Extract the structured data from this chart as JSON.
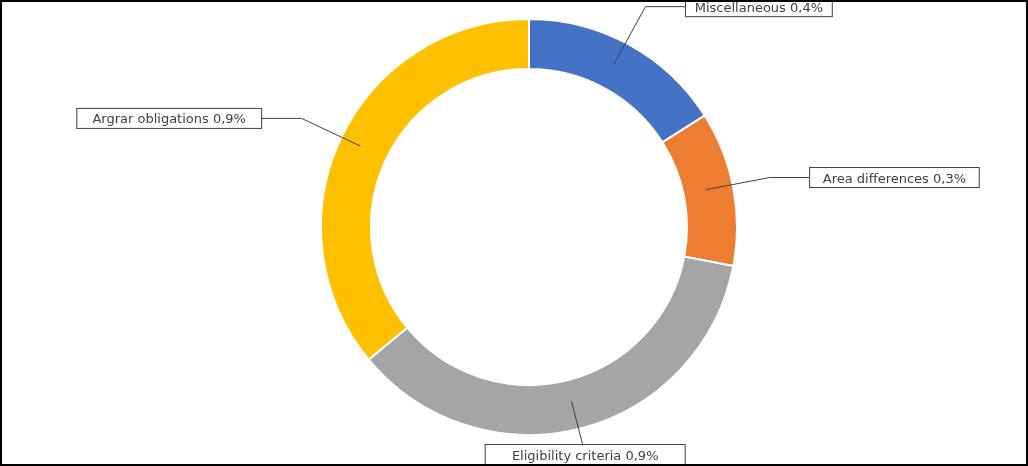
{
  "chart_data": {
    "type": "donut",
    "categories": [
      "Miscellaneous",
      "Area differences",
      "Eligibility criteria",
      "Argrar obligations"
    ],
    "values": [
      0.4,
      0.3,
      0.9,
      0.9
    ],
    "value_labels": [
      "0,4%",
      "0,3%",
      "0,9%",
      "0,9%"
    ],
    "colors": [
      "#4472c4",
      "#ed7d31",
      "#a5a5a5",
      "#ffc000"
    ],
    "legend": false
  }
}
